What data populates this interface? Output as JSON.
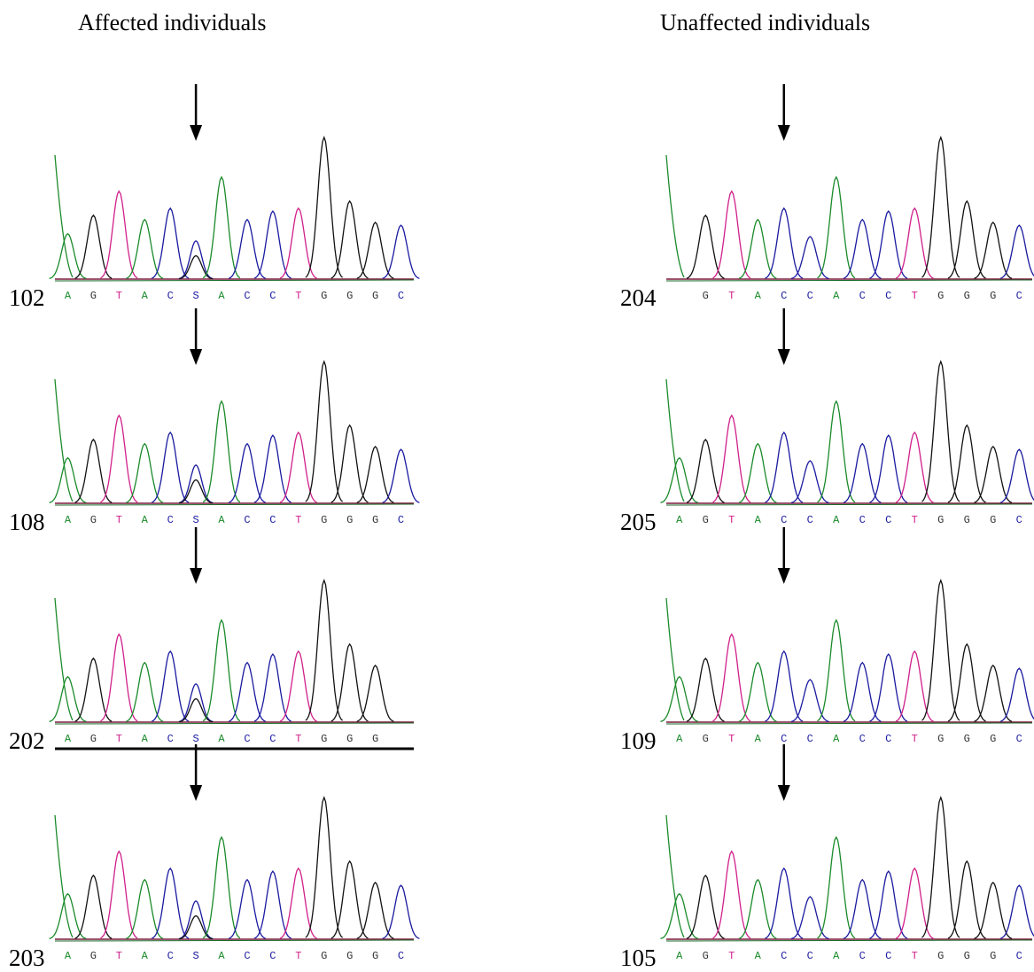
{
  "headers": {
    "affected": "Affected individuals",
    "unaffected": "Unaffected individuals"
  },
  "affected": [
    {
      "label": "102",
      "bases": [
        "A",
        "G",
        "T",
        "A",
        "C",
        "S",
        "A",
        "C",
        "C",
        "T",
        "G",
        "G",
        "G",
        "C"
      ]
    },
    {
      "label": "108",
      "bases": [
        "A",
        "G",
        "T",
        "A",
        "C",
        "S",
        "A",
        "C",
        "C",
        "T",
        "G",
        "G",
        "G",
        "C"
      ]
    },
    {
      "label": "202",
      "bases": [
        "A",
        "G",
        "T",
        "A",
        "C",
        "S",
        "A",
        "C",
        "C",
        "T",
        "G",
        "G",
        "G"
      ]
    },
    {
      "label": "203",
      "bases": [
        "A",
        "G",
        "T",
        "A",
        "C",
        "S",
        "A",
        "C",
        "C",
        "T",
        "G",
        "G",
        "G",
        "C"
      ]
    }
  ],
  "unaffected": [
    {
      "label": "204",
      "bases": [
        "G",
        "T",
        "A",
        "C",
        "C",
        "A",
        "C",
        "C",
        "T",
        "G",
        "G",
        "G",
        "C"
      ]
    },
    {
      "label": "205",
      "bases": [
        "A",
        "G",
        "T",
        "A",
        "C",
        "C",
        "A",
        "C",
        "C",
        "T",
        "G",
        "G",
        "G",
        "C"
      ]
    },
    {
      "label": "109",
      "bases": [
        "A",
        "G",
        "T",
        "A",
        "C",
        "C",
        "A",
        "C",
        "C",
        "T",
        "G",
        "G",
        "G",
        "C"
      ]
    },
    {
      "label": "105",
      "bases": [
        "A",
        "G",
        "T",
        "A",
        "C",
        "C",
        "A",
        "C",
        "C",
        "T",
        "G",
        "G",
        "G",
        "C"
      ]
    }
  ]
}
